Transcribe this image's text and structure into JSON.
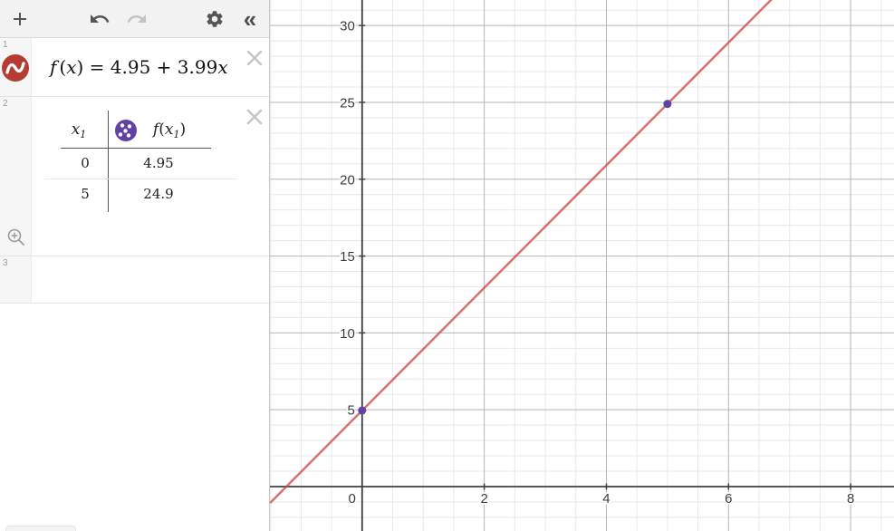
{
  "toolbar": {
    "buttons": [
      {
        "name": "add-expression",
        "icon": "plus-icon",
        "enabled": true
      },
      {
        "name": "undo",
        "icon": "undo-icon",
        "enabled": true
      },
      {
        "name": "redo",
        "icon": "redo-icon",
        "enabled": false
      },
      {
        "name": "settings",
        "icon": "gear-icon",
        "enabled": true
      },
      {
        "name": "collapse-panel",
        "icon": "double-chevron-left-icon",
        "enabled": true
      }
    ],
    "collapse_glyph": "«"
  },
  "expressions": {
    "row1": {
      "index": "1",
      "icon": "red-logo-curve-icon",
      "latex": {
        "fname": "f",
        "open": "(",
        "arg": "x",
        "rest": ") = 4.95 + 3.99",
        "tail": "x"
      }
    },
    "row2": {
      "index": "2",
      "icon": "purple-points-style-icon",
      "table": {
        "col1": {
          "base": "x",
          "sub": "1"
        },
        "col2": {
          "fname": "f",
          "open": "(",
          "arg": "x",
          "sub": "1",
          "close": ")"
        },
        "rows": [
          [
            "0",
            "4.95"
          ],
          [
            "5",
            "24.9"
          ]
        ]
      }
    },
    "row3": {
      "index": "3"
    }
  },
  "chart_data": {
    "type": "line",
    "title": "",
    "xlabel": "",
    "ylabel": "",
    "series": [
      {
        "name": "f(x) = 4.95 + 3.99x",
        "slope": 3.99,
        "intercept": 4.95,
        "color": "#c74440",
        "opacity": 0.75,
        "width": 2.5
      }
    ],
    "points": [
      {
        "x": 0,
        "y": 4.95,
        "color": "#6042a6"
      },
      {
        "x": 5,
        "y": 24.9,
        "color": "#6042a6"
      }
    ],
    "x_ticks": [
      0,
      2,
      4,
      6,
      8
    ],
    "y_ticks": [
      5,
      10,
      15,
      20,
      25,
      30
    ],
    "view": {
      "xmin": -1.51,
      "xmax": 8.71,
      "ymin": -2.89,
      "ymax": 31.66,
      "minor_x": 0.5,
      "minor_y": 1,
      "major_x": 2,
      "major_y": 5
    },
    "grid": true,
    "legend": "none",
    "colors": {
      "axis": "#404040",
      "major_grid": "#b5b5b5",
      "minor_grid": "#e8e8e8",
      "tick_label": "#3c3c3c"
    }
  },
  "ui_colors": {
    "accent_red": "#b53c33",
    "accent_purple": "#6042a6",
    "line_red": "#c74440"
  }
}
